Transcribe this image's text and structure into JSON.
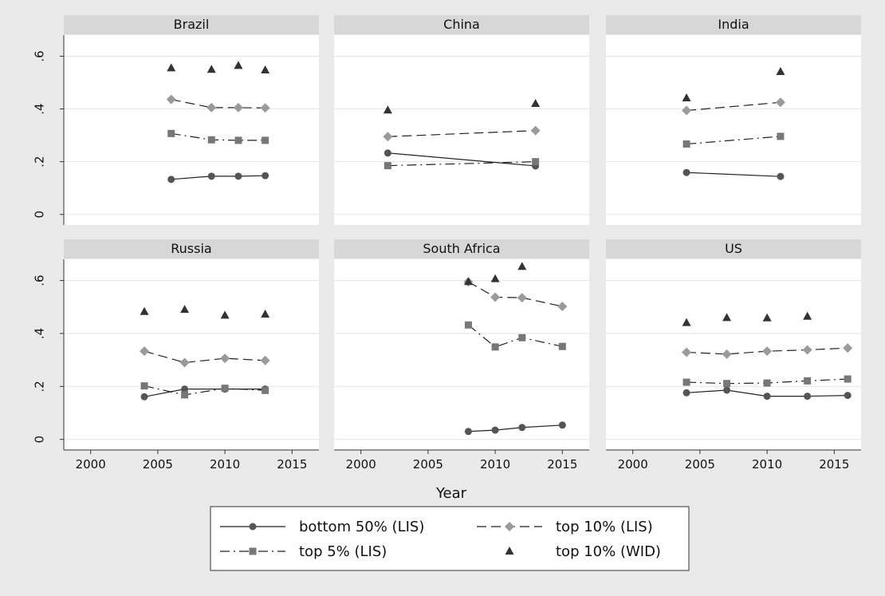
{
  "chart_data": {
    "type": "line",
    "xlabel": "Year",
    "ylabel": "",
    "xlim": [
      1998,
      2017
    ],
    "ylim": [
      -0.04,
      0.68
    ],
    "x_ticks": [
      2000,
      2005,
      2010,
      2015
    ],
    "y_ticks": [
      0,
      0.2,
      0.4,
      0.6
    ],
    "y_tick_labels": [
      "0",
      ".2",
      ".4",
      ".6"
    ],
    "grid": true,
    "legend_position": "bottom",
    "series_legend": [
      {
        "key": "b50",
        "label": "bottom 50% (LIS)",
        "line": "solid",
        "marker": "circle",
        "color": "#555555"
      },
      {
        "key": "t10",
        "label": "top 10% (LIS)",
        "line": "dashed",
        "marker": "diamond",
        "color": "#9a9a9a"
      },
      {
        "key": "t5",
        "label": "top 5% (LIS)",
        "line": "dashdot",
        "marker": "square",
        "color": "#777777"
      },
      {
        "key": "w10",
        "label": "top 10% (WID)",
        "line": "none",
        "marker": "triangle",
        "color": "#333333"
      }
    ],
    "panels": [
      {
        "title": "Brazil",
        "series": {
          "b50": {
            "x": [
              2006,
              2009,
              2011,
              2013
            ],
            "y": [
              0.133,
              0.145,
              0.145,
              0.147
            ]
          },
          "t10": {
            "x": [
              2006,
              2009,
              2011,
              2013
            ],
            "y": [
              0.436,
              0.405,
              0.405,
              0.404
            ]
          },
          "t5": {
            "x": [
              2006,
              2009,
              2011,
              2013
            ],
            "y": [
              0.307,
              0.283,
              0.281,
              0.281
            ]
          },
          "w10": {
            "x": [
              2006,
              2009,
              2011,
              2013
            ],
            "y": [
              0.555,
              0.549,
              0.564,
              0.547
            ]
          }
        }
      },
      {
        "title": "China",
        "series": {
          "b50": {
            "x": [
              2002,
              2013
            ],
            "y": [
              0.233,
              0.184
            ]
          },
          "t10": {
            "x": [
              2002,
              2013
            ],
            "y": [
              0.295,
              0.318
            ]
          },
          "t5": {
            "x": [
              2002,
              2013
            ],
            "y": [
              0.185,
              0.2
            ]
          },
          "w10": {
            "x": [
              2002,
              2013
            ],
            "y": [
              0.395,
              0.42
            ]
          }
        }
      },
      {
        "title": "India",
        "series": {
          "b50": {
            "x": [
              2004,
              2011
            ],
            "y": [
              0.159,
              0.144
            ]
          },
          "t10": {
            "x": [
              2004,
              2011
            ],
            "y": [
              0.394,
              0.425
            ]
          },
          "t5": {
            "x": [
              2004,
              2011
            ],
            "y": [
              0.267,
              0.296
            ]
          },
          "w10": {
            "x": [
              2004,
              2011
            ],
            "y": [
              0.441,
              0.541
            ]
          }
        }
      },
      {
        "title": "Russia",
        "series": {
          "b50": {
            "x": [
              2004,
              2007,
              2010,
              2013
            ],
            "y": [
              0.161,
              0.19,
              0.19,
              0.19
            ]
          },
          "t10": {
            "x": [
              2004,
              2007,
              2010,
              2013
            ],
            "y": [
              0.333,
              0.29,
              0.306,
              0.298
            ]
          },
          "t5": {
            "x": [
              2004,
              2007,
              2010,
              2013
            ],
            "y": [
              0.202,
              0.168,
              0.193,
              0.185
            ]
          },
          "w10": {
            "x": [
              2004,
              2007,
              2010,
              2013
            ],
            "y": [
              0.482,
              0.49,
              0.468,
              0.472
            ]
          }
        }
      },
      {
        "title": "South Africa",
        "series": {
          "b50": {
            "x": [
              2008,
              2010,
              2012,
              2015
            ],
            "y": [
              0.03,
              0.035,
              0.045,
              0.054
            ]
          },
          "t10": {
            "x": [
              2008,
              2010,
              2012,
              2015
            ],
            "y": [
              0.595,
              0.537,
              0.535,
              0.502
            ]
          },
          "t5": {
            "x": [
              2008,
              2010,
              2012,
              2015
            ],
            "y": [
              0.432,
              0.349,
              0.384,
              0.351
            ]
          },
          "w10": {
            "x": [
              2008,
              2010,
              2012
            ],
            "y": [
              0.595,
              0.606,
              0.652
            ]
          }
        }
      },
      {
        "title": "US",
        "series": {
          "b50": {
            "x": [
              2004,
              2007,
              2010,
              2013,
              2016
            ],
            "y": [
              0.176,
              0.186,
              0.163,
              0.163,
              0.166
            ]
          },
          "t10": {
            "x": [
              2004,
              2007,
              2010,
              2013,
              2016
            ],
            "y": [
              0.329,
              0.322,
              0.333,
              0.338,
              0.345
            ]
          },
          "t5": {
            "x": [
              2004,
              2007,
              2010,
              2013,
              2016
            ],
            "y": [
              0.216,
              0.211,
              0.213,
              0.221,
              0.228
            ]
          },
          "w10": {
            "x": [
              2004,
              2007,
              2010,
              2013
            ],
            "y": [
              0.44,
              0.459,
              0.458,
              0.464
            ]
          }
        }
      }
    ]
  }
}
